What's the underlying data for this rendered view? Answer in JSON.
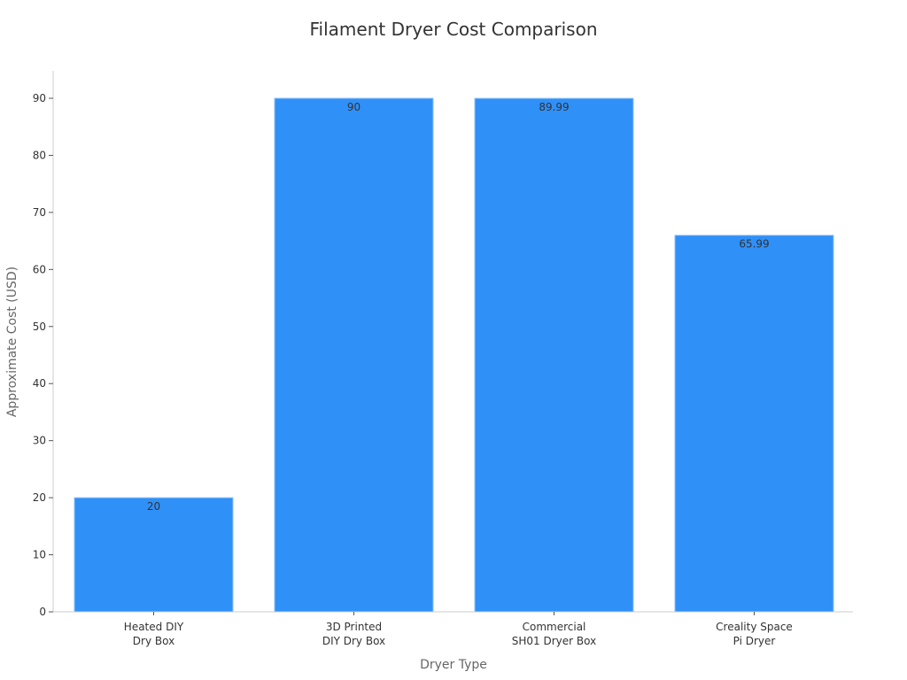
{
  "chart_data": {
    "type": "bar",
    "title": "Filament Dryer Cost Comparison",
    "xlabel": "Dryer Type",
    "ylabel": "Approximate Cost (USD)",
    "categories": [
      [
        "Heated DIY",
        "Dry Box"
      ],
      [
        "3D Printed",
        "DIY Dry Box"
      ],
      [
        "Commercial",
        "SH01 Dryer Box"
      ],
      [
        "Creality Space",
        "Pi Dryer"
      ]
    ],
    "values": [
      20,
      90,
      89.99,
      65.99
    ],
    "value_labels": [
      "20",
      "90",
      "89.99",
      "65.99"
    ],
    "ylim": [
      0,
      95
    ],
    "yticks": [
      0,
      10,
      20,
      30,
      40,
      50,
      60,
      70,
      80,
      90
    ],
    "grid": false,
    "bar_color": "#2f90f8",
    "bar_edge": "#8fc2f8"
  }
}
